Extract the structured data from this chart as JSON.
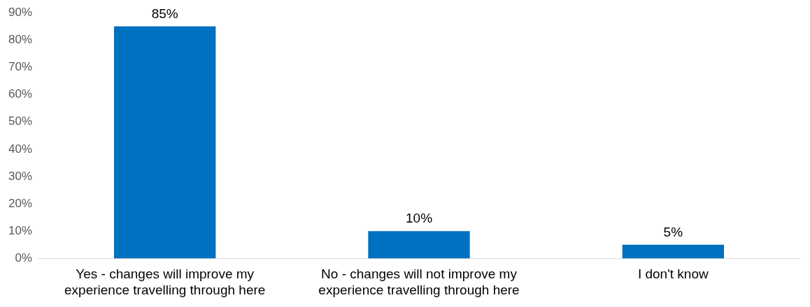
{
  "chart_data": {
    "type": "bar",
    "categories": [
      "Yes - changes will improve my experience travelling through here",
      "No - changes will not improve my experience travelling through here",
      "I don't know"
    ],
    "values": [
      85,
      10,
      5
    ],
    "value_labels": [
      "85%",
      "10%",
      "5%"
    ],
    "color": "#0070c0",
    "ylim": [
      0,
      90
    ],
    "yticks": [
      {
        "value": 0,
        "label": "0%"
      },
      {
        "value": 10,
        "label": "10%"
      },
      {
        "value": 20,
        "label": "20%"
      },
      {
        "value": 30,
        "label": "30%"
      },
      {
        "value": 40,
        "label": "40%"
      },
      {
        "value": 50,
        "label": "50%"
      },
      {
        "value": 60,
        "label": "60%"
      },
      {
        "value": 70,
        "label": "70%"
      },
      {
        "value": 80,
        "label": "80%"
      },
      {
        "value": 90,
        "label": "90%"
      }
    ]
  }
}
